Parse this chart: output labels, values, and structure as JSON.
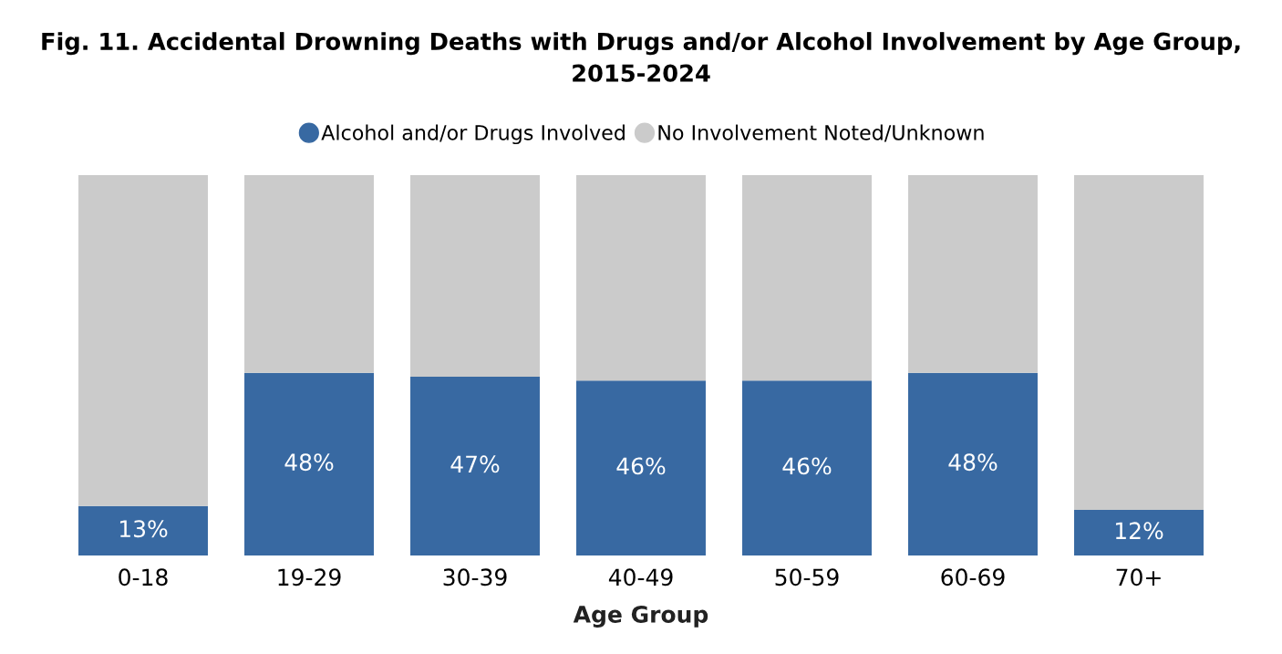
{
  "chart_data": {
    "type": "bar",
    "title": "Fig. 11. Accidental Drowning Deaths with Drugs and/or Alcohol Involvement by Age Group, 2015-2024",
    "xlabel": "Age Group",
    "categories": [
      "0-18",
      "19-29",
      "30-39",
      "40-49",
      "50-59",
      "60-69",
      "70+"
    ],
    "series": [
      {
        "name": "Alcohol and/or Drugs Involved",
        "color": "#3869a2",
        "values": [
          13,
          48,
          47,
          46,
          46,
          48,
          12
        ],
        "value_labels": [
          "13%",
          "48%",
          "47%",
          "46%",
          "46%",
          "48%",
          "12%"
        ]
      },
      {
        "name": "No Involvement Noted/Unknown",
        "color": "#cbcbcb",
        "values": [
          87,
          52,
          53,
          54,
          54,
          52,
          88
        ]
      }
    ],
    "stacked": true,
    "ylim": [
      0,
      100
    ],
    "tick_labels": "x",
    "legend": "top",
    "marker": "circle"
  }
}
